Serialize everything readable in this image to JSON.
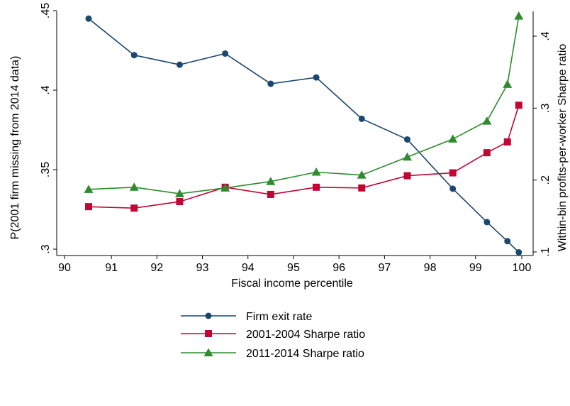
{
  "chart_data": {
    "type": "line",
    "title": "",
    "xlabel": "Fiscal income percentile",
    "ylabel": "P(2001 firm missing from 2014 data)",
    "y2label": "Within-bin profits-per-worker Sharpe ratio",
    "xlim": [
      90,
      100
    ],
    "ylim": [
      0.3,
      0.45
    ],
    "y2lim": [
      0.1,
      0.45
    ],
    "x_ticks": [
      "90",
      "91",
      "92",
      "93",
      "94",
      "95",
      "96",
      "97",
      "98",
      "99",
      "100"
    ],
    "y_ticks": [
      ".3",
      ".35",
      ".4",
      ".45"
    ],
    "y2_ticks": [
      ".1",
      ".2",
      ".3",
      ".4"
    ],
    "grid": false,
    "legend_position": "bottom",
    "series": [
      {
        "name": "Firm exit rate",
        "axis": "left",
        "color": "#1a476f",
        "marker": "circle",
        "x": [
          90.5,
          91.5,
          92.5,
          93.5,
          94.5,
          95.5,
          96.5,
          97.5,
          98.5,
          99.25,
          99.7,
          99.95
        ],
        "y": [
          0.445,
          0.422,
          0.416,
          0.423,
          0.404,
          0.408,
          0.382,
          0.369,
          0.338,
          0.317,
          0.305,
          0.298
        ]
      },
      {
        "name": "2001-2004 Sharpe ratio",
        "axis": "right",
        "color": "#c10534",
        "marker": "square",
        "x": [
          90.5,
          91.5,
          92.5,
          93.5,
          94.5,
          95.5,
          96.5,
          97.5,
          98.5,
          99.25,
          99.7,
          99.95
        ],
        "y": [
          0.163,
          0.161,
          0.17,
          0.19,
          0.18,
          0.19,
          0.189,
          0.206,
          0.21,
          0.238,
          0.253,
          0.304
        ]
      },
      {
        "name": "2011-2014 Sharpe ratio",
        "axis": "right",
        "color": "#2e8b2e",
        "marker": "triangle",
        "x": [
          90.5,
          91.5,
          92.5,
          93.5,
          94.5,
          95.5,
          96.5,
          97.5,
          98.5,
          99.25,
          99.7,
          99.95
        ],
        "y": [
          0.187,
          0.19,
          0.181,
          0.189,
          0.198,
          0.211,
          0.207,
          0.232,
          0.257,
          0.282,
          0.333,
          0.428
        ]
      }
    ]
  }
}
